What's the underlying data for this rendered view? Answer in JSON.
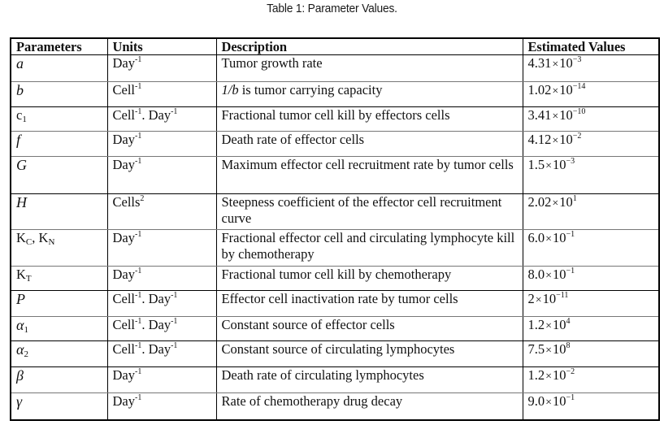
{
  "caption": "Table 1: Parameter Values.",
  "table": {
    "headers": {
      "parameters": "Parameters",
      "units": "Units",
      "description": "Description",
      "estimated_values": "Estimated Values"
    },
    "rows": [
      {
        "param": {
          "base": "a",
          "sub": ""
        },
        "units": [
          {
            "base": "Day",
            "exp": "-1"
          }
        ],
        "description": "Tumor growth rate",
        "value": {
          "mantissa": "4.31",
          "exp": "−3"
        }
      },
      {
        "param": {
          "base": "b",
          "sub": ""
        },
        "units": [
          {
            "base": "Cell",
            "exp": "-1"
          }
        ],
        "description_prefix": "1/b",
        "description": " is tumor carrying capacity",
        "value": {
          "mantissa": "1.02",
          "exp": "−14"
        }
      },
      {
        "param": {
          "base": "c",
          "sub": "1"
        },
        "units": [
          {
            "base": "Cell",
            "exp": "-1"
          },
          {
            "base": ". Day",
            "exp": "-1"
          }
        ],
        "description": "Fractional tumor cell kill by effectors cells",
        "value": {
          "mantissa": "3.41",
          "exp": "−10"
        }
      },
      {
        "param": {
          "base": "f",
          "sub": ""
        },
        "units": [
          {
            "base": "Day",
            "exp": "-1"
          }
        ],
        "description": "Death rate of effector cells",
        "value": {
          "mantissa": "4.12",
          "exp": "−2"
        }
      },
      {
        "param": {
          "base": "G",
          "sub": ""
        },
        "units": [
          {
            "base": "Day",
            "exp": "-1"
          }
        ],
        "description": "Maximum effector cell recruitment rate by tumor cells",
        "value": {
          "mantissa": "1.5",
          "exp": "−3"
        }
      },
      {
        "param": {
          "base": "H",
          "sub": ""
        },
        "units": [
          {
            "base": "Cells",
            "exp": "2"
          }
        ],
        "description": "Steepness coefficient of the effector cell recruitment curve",
        "value": {
          "mantissa": "2.02",
          "exp": "1"
        }
      },
      {
        "param": {
          "base": "K",
          "sub": "C",
          "base2": ", K",
          "sub2": "N"
        },
        "units": [
          {
            "base": "Day",
            "exp": "-1"
          }
        ],
        "description": "Fractional effector cell and circulating lymphocyte kill by chemotherapy",
        "value": {
          "mantissa": "6.0",
          "exp": "−1"
        }
      },
      {
        "param": {
          "base": "K",
          "sub": "T"
        },
        "units": [
          {
            "base": "Day",
            "exp": "-1"
          }
        ],
        "description": "Fractional tumor cell kill by chemotherapy",
        "value": {
          "mantissa": "8.0",
          "exp": "−1"
        }
      },
      {
        "param": {
          "base": "P",
          "sub": ""
        },
        "units": [
          {
            "base": "Cell",
            "exp": "-1"
          },
          {
            "base": ". Day",
            "exp": "-1"
          }
        ],
        "description": "Effector cell inactivation rate by tumor cells",
        "value": {
          "mantissa": "2",
          "exp": "−11"
        }
      },
      {
        "param": {
          "base": "α",
          "sub": "1"
        },
        "units": [
          {
            "base": "Cell",
            "exp": "-1"
          },
          {
            "base": ". Day",
            "exp": "-1"
          }
        ],
        "description": "Constant source of effector cells",
        "value": {
          "mantissa": "1.2",
          "exp": "4"
        }
      },
      {
        "param": {
          "base": "α",
          "sub": "2"
        },
        "units": [
          {
            "base": "Cell",
            "exp": "-1"
          },
          {
            "base": ". Day",
            "exp": "-1"
          }
        ],
        "description": "Constant source of circulating lymphocytes",
        "value": {
          "mantissa": "7.5",
          "exp": "8"
        }
      },
      {
        "param": {
          "base": "β",
          "sub": ""
        },
        "units": [
          {
            "base": "Day",
            "exp": "-1"
          }
        ],
        "description": "Death rate of circulating lymphocytes",
        "value": {
          "mantissa": "1.2",
          "exp": "−2"
        }
      },
      {
        "param": {
          "base": "γ",
          "sub": ""
        },
        "units": [
          {
            "base": "Day",
            "exp": "-1"
          }
        ],
        "description": "Rate of chemotherapy drug decay",
        "value": {
          "mantissa": "9.0",
          "exp": "−1"
        }
      }
    ],
    "times_symbol": "×",
    "base_ten": "10"
  }
}
